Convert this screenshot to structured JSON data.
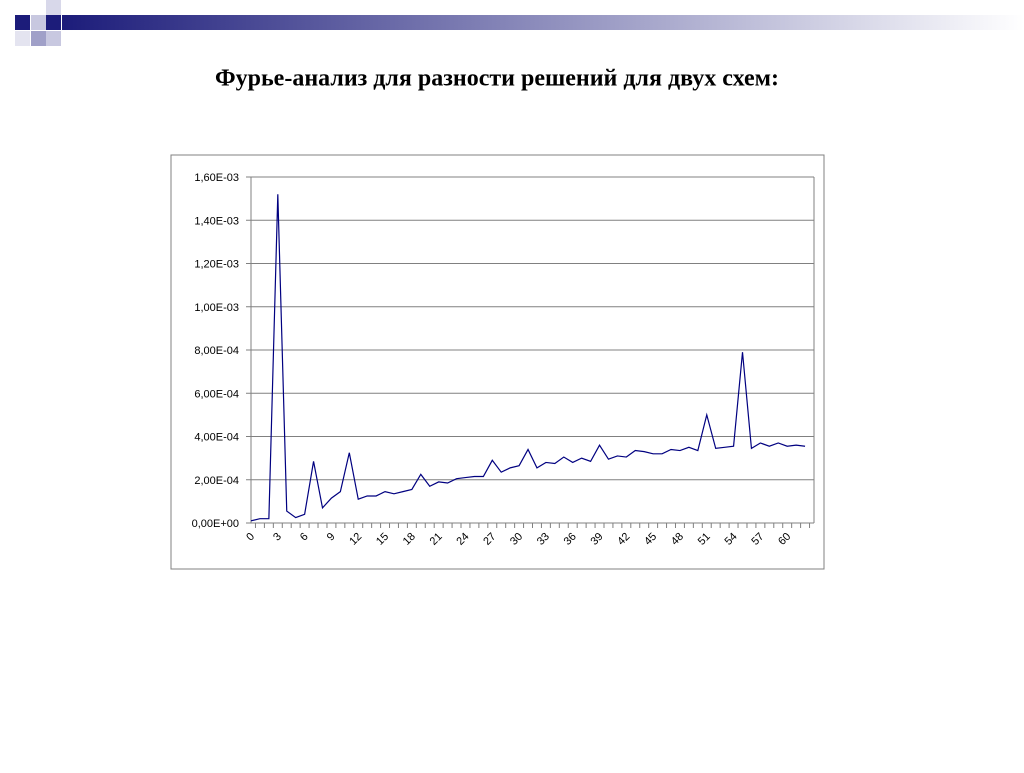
{
  "chart_data": {
    "type": "line",
    "title": "Фурье-анализ для разности решений для двух схем:",
    "categories": [
      "0",
      null,
      null,
      "3",
      null,
      null,
      "6",
      null,
      null,
      "9",
      null,
      null,
      "12",
      null,
      null,
      "15",
      null,
      null,
      "18",
      null,
      null,
      "21",
      null,
      null,
      "24",
      null,
      null,
      "27",
      null,
      null,
      "30",
      null,
      null,
      "33",
      null,
      null,
      "36",
      null,
      null,
      "39",
      null,
      null,
      "42",
      null,
      null,
      "45",
      null,
      null,
      "48",
      null,
      null,
      "51",
      null,
      null,
      "54",
      null,
      null,
      "57",
      null,
      null,
      "60",
      null,
      null
    ],
    "values": [
      1e-05,
      2e-05,
      2e-05,
      0.00152,
      5.5e-05,
      2.5e-05,
      4e-05,
      0.000285,
      7e-05,
      0.000115,
      0.000145,
      0.000325,
      0.00011,
      0.000125,
      0.000125,
      0.000145,
      0.000135,
      0.000145,
      0.000155,
      0.000225,
      0.00017,
      0.00019,
      0.000185,
      0.000205,
      0.00021,
      0.000215,
      0.000215,
      0.00029,
      0.000235,
      0.000255,
      0.000265,
      0.00034,
      0.000255,
      0.00028,
      0.000275,
      0.000305,
      0.00028,
      0.0003,
      0.000285,
      0.00036,
      0.000295,
      0.00031,
      0.000305,
      0.000335,
      0.00033,
      0.00032,
      0.00032,
      0.00034,
      0.000335,
      0.00035,
      0.000335,
      0.0005,
      0.000345,
      0.00035,
      0.000355,
      0.00079,
      0.000345,
      0.00037,
      0.000355,
      0.00037,
      0.000355,
      0.00036,
      0.000355
    ],
    "color": "#000080",
    "ylim": [
      0,
      0.0016
    ],
    "yticks": [
      {
        "value": 0,
        "label": "0,00E+00"
      },
      {
        "value": 0.0002,
        "label": "2,00E-04"
      },
      {
        "value": 0.0004,
        "label": "4,00E-04"
      },
      {
        "value": 0.0006,
        "label": "6,00E-04"
      },
      {
        "value": 0.0008,
        "label": "8,00E-04"
      },
      {
        "value": 0.001,
        "label": "1,00E-03"
      },
      {
        "value": 0.0012,
        "label": "1,20E-03"
      },
      {
        "value": 0.0014,
        "label": "1,40E-03"
      },
      {
        "value": 0.0016,
        "label": "1,60E-03"
      }
    ],
    "grid": true
  }
}
